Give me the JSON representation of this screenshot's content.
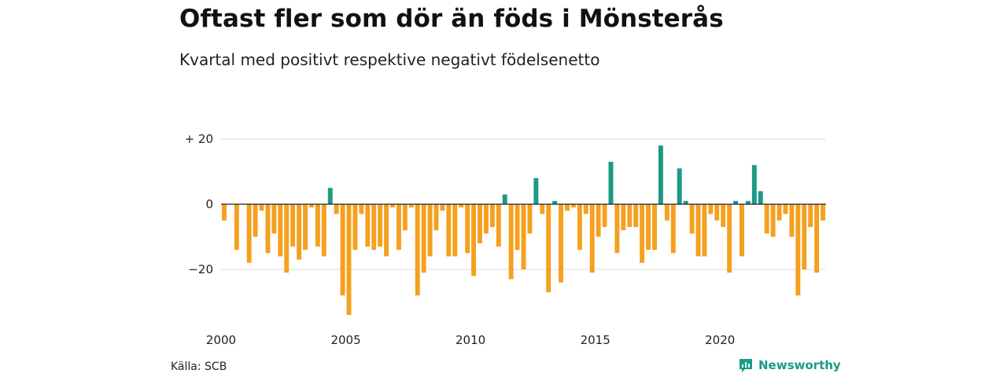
{
  "title": "Oftast fler som dör än föds i Mönsterås",
  "subtitle": "Kvartal med positivt respektive negativt födelsenetto",
  "source": "Källa: SCB",
  "brand": {
    "name": "Newsworthy",
    "icon": "newsworthy-logo-icon"
  },
  "colors": {
    "positive": "#1a9a87",
    "negative": "#f5a01f",
    "grid": "#dcdcdc",
    "zero": "#222222"
  },
  "chart_data": {
    "type": "bar",
    "x_start": "2000-Q1",
    "x_ticks": [
      "2000",
      "2005",
      "2010",
      "2015",
      "2020"
    ],
    "y_ticks": [
      {
        "value": 20,
        "label": "+ 20"
      },
      {
        "value": 0,
        "label": "0"
      },
      {
        "value": -20,
        "label": "−20"
      }
    ],
    "ylim": [
      -34,
      20
    ],
    "grid": true,
    "values": [
      -5,
      0,
      -14,
      0,
      -18,
      -10,
      -2,
      -15,
      -9,
      -16,
      -21,
      -13,
      -17,
      -14,
      -1,
      -13,
      -16,
      5,
      -3,
      -28,
      -34,
      -14,
      -3,
      -13,
      -14,
      -13,
      -16,
      -1,
      -14,
      -8,
      -1,
      -28,
      -21,
      -16,
      -8,
      -2,
      -16,
      -16,
      -1,
      -15,
      -22,
      -12,
      -9,
      -7,
      -13,
      3,
      -23,
      -14,
      -20,
      -9,
      8,
      -3,
      -27,
      1,
      -24,
      -2,
      -1,
      -14,
      -3,
      -21,
      -10,
      -7,
      13,
      -15,
      -8,
      -7,
      -7,
      -18,
      -14,
      -14,
      18,
      -5,
      -15,
      11,
      1,
      -9,
      -16,
      -16,
      -3,
      -5,
      -7,
      -21,
      1,
      -16,
      1,
      12,
      4,
      -9,
      -10,
      -5,
      -3,
      -10,
      -28,
      -20,
      -7,
      -21,
      -5
    ]
  }
}
